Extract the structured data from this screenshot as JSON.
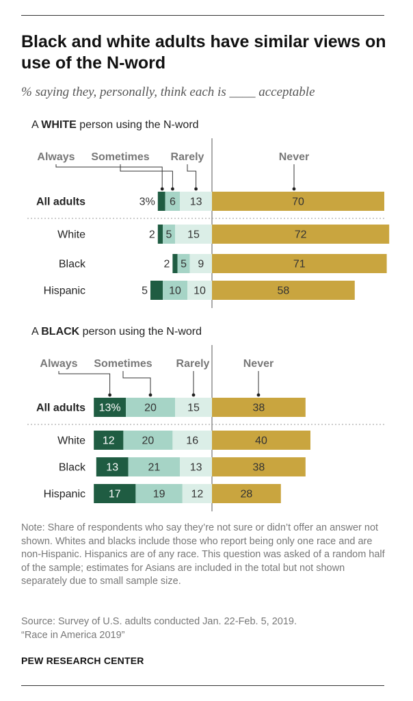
{
  "title": "Black and white adults have similar views on use of the N-word",
  "subtitle": "% saying they, personally, think each is ____ acceptable",
  "note": "Note: Share of respondents who say they’re not sure or didn’t offer an answer not shown. Whites and blacks include those who report being only one race and are non-Hispanic. Hispanics are of any race. This question was asked of a random half of the sample; estimates for Asians are included in the total but not shown separately due to small sample size.",
  "source": "Source: Survey of U.S. adults conducted Jan. 22-Feb. 5, 2019.",
  "report": "“Race in America 2019”",
  "org": "PEW RESEARCH CENTER",
  "colors": {
    "always": "#1f5c42",
    "sometimes": "#a6d4c6",
    "rarely": "#dbeee7",
    "never": "#c9a53f"
  },
  "chart_data": [
    {
      "type": "bar",
      "orientation": "horizontal",
      "stacked": true,
      "title_parts": [
        "A ",
        "WHITE",
        " person using the N-word"
      ],
      "categories": [
        "All adults",
        "White",
        "Black",
        "Hispanic"
      ],
      "series": [
        {
          "name": "Always",
          "values": [
            3,
            2,
            2,
            5
          ],
          "labels": [
            "3%",
            "2",
            "2",
            "5"
          ]
        },
        {
          "name": "Sometimes",
          "values": [
            6,
            5,
            5,
            10
          ],
          "labels": [
            "6",
            "5",
            "5",
            "10"
          ]
        },
        {
          "name": "Rarely",
          "values": [
            13,
            15,
            9,
            10
          ],
          "labels": [
            "13",
            "15",
            "9",
            "10"
          ]
        },
        {
          "name": "Never",
          "values": [
            70,
            72,
            71,
            58
          ],
          "labels": [
            "70",
            "72",
            "71",
            "58"
          ]
        }
      ]
    },
    {
      "type": "bar",
      "orientation": "horizontal",
      "stacked": true,
      "title_parts": [
        "A ",
        "BLACK",
        " person using the N-word"
      ],
      "categories": [
        "All adults",
        "White",
        "Black",
        "Hispanic"
      ],
      "series": [
        {
          "name": "Always",
          "values": [
            13,
            12,
            13,
            17
          ],
          "labels": [
            "13%",
            "12",
            "13",
            "17"
          ]
        },
        {
          "name": "Sometimes",
          "values": [
            20,
            20,
            21,
            19
          ],
          "labels": [
            "20",
            "20",
            "21",
            "19"
          ]
        },
        {
          "name": "Rarely",
          "values": [
            15,
            16,
            13,
            12
          ],
          "labels": [
            "15",
            "16",
            "13",
            "12"
          ]
        },
        {
          "name": "Never",
          "values": [
            38,
            40,
            38,
            28
          ],
          "labels": [
            "38",
            "40",
            "38",
            "28"
          ]
        }
      ]
    }
  ]
}
